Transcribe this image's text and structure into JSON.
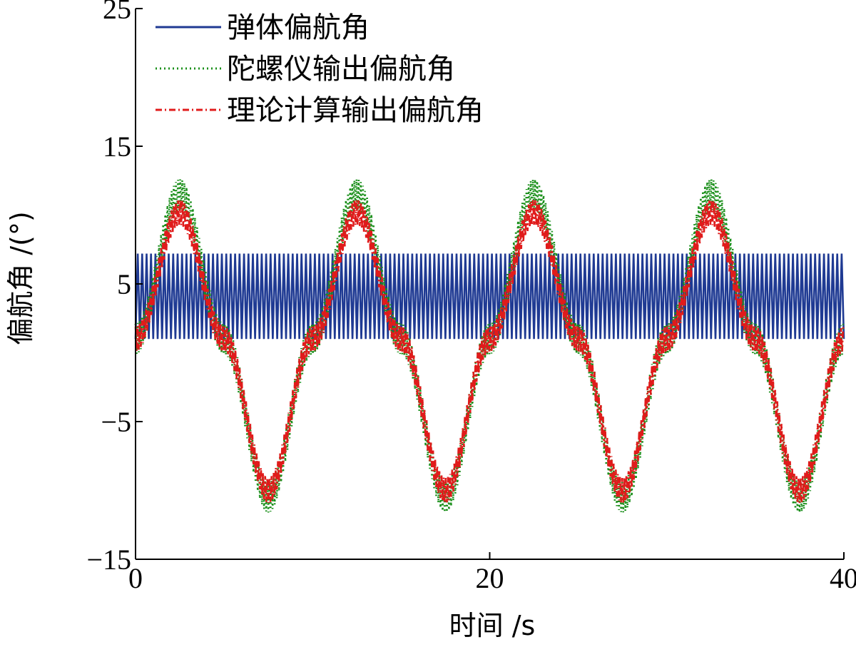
{
  "chart_data": {
    "type": "line",
    "xlabel": "时间 /s",
    "ylabel": "偏航角 /(°)",
    "xlim": [
      0,
      40
    ],
    "ylim": [
      -15,
      25
    ],
    "xticks": [
      "0",
      "20",
      "40"
    ],
    "yticks": [
      "−15",
      "−5",
      "5",
      "15",
      "25"
    ],
    "grid": false,
    "legend_position": "top-left",
    "series": [
      {
        "name": "弹体偏航角",
        "color": "#1f3a93",
        "style": "solid",
        "description_values": {
          "min": 1.0,
          "max": 7.2,
          "oscillation_period_s": 0.25
        },
        "x": [
          0,
          0.125,
          0.25,
          0.375,
          0.5,
          0.625,
          0.75,
          0.875,
          1.0,
          10,
          20,
          30,
          40
        ],
        "y": [
          1.2,
          7.2,
          1.0,
          7.2,
          1.0,
          7.2,
          1.0,
          7.2,
          1.0,
          7.2,
          1.0,
          7.2,
          1.0
        ]
      },
      {
        "name": "陀螺仪输出偏航角",
        "color": "#1a8f1a",
        "style": "dotted",
        "x": [
          0,
          2.5,
          5,
          7.5,
          10,
          12.5,
          15,
          17.5,
          20,
          22.5,
          25,
          27.5,
          30,
          32.5,
          35,
          37.5,
          40
        ],
        "y": [
          1,
          11.5,
          1,
          -10.5,
          1,
          11.5,
          1,
          -10.5,
          1,
          11.5,
          1,
          -10.5,
          1,
          11.5,
          1,
          -10.5,
          1
        ]
      },
      {
        "name": "理论计算输出偏航角",
        "color": "#e01b1b",
        "style": "dashdot",
        "x": [
          0,
          2.5,
          5,
          7.5,
          10,
          12.5,
          15,
          17.5,
          20,
          22.5,
          25,
          27.5,
          30,
          32.5,
          35,
          37.5,
          40
        ],
        "y": [
          1,
          10.2,
          1,
          -10.0,
          1,
          10.2,
          1,
          -10.0,
          1,
          10.2,
          1,
          -10.0,
          1,
          10.2,
          1,
          -10.0,
          1
        ]
      }
    ]
  }
}
